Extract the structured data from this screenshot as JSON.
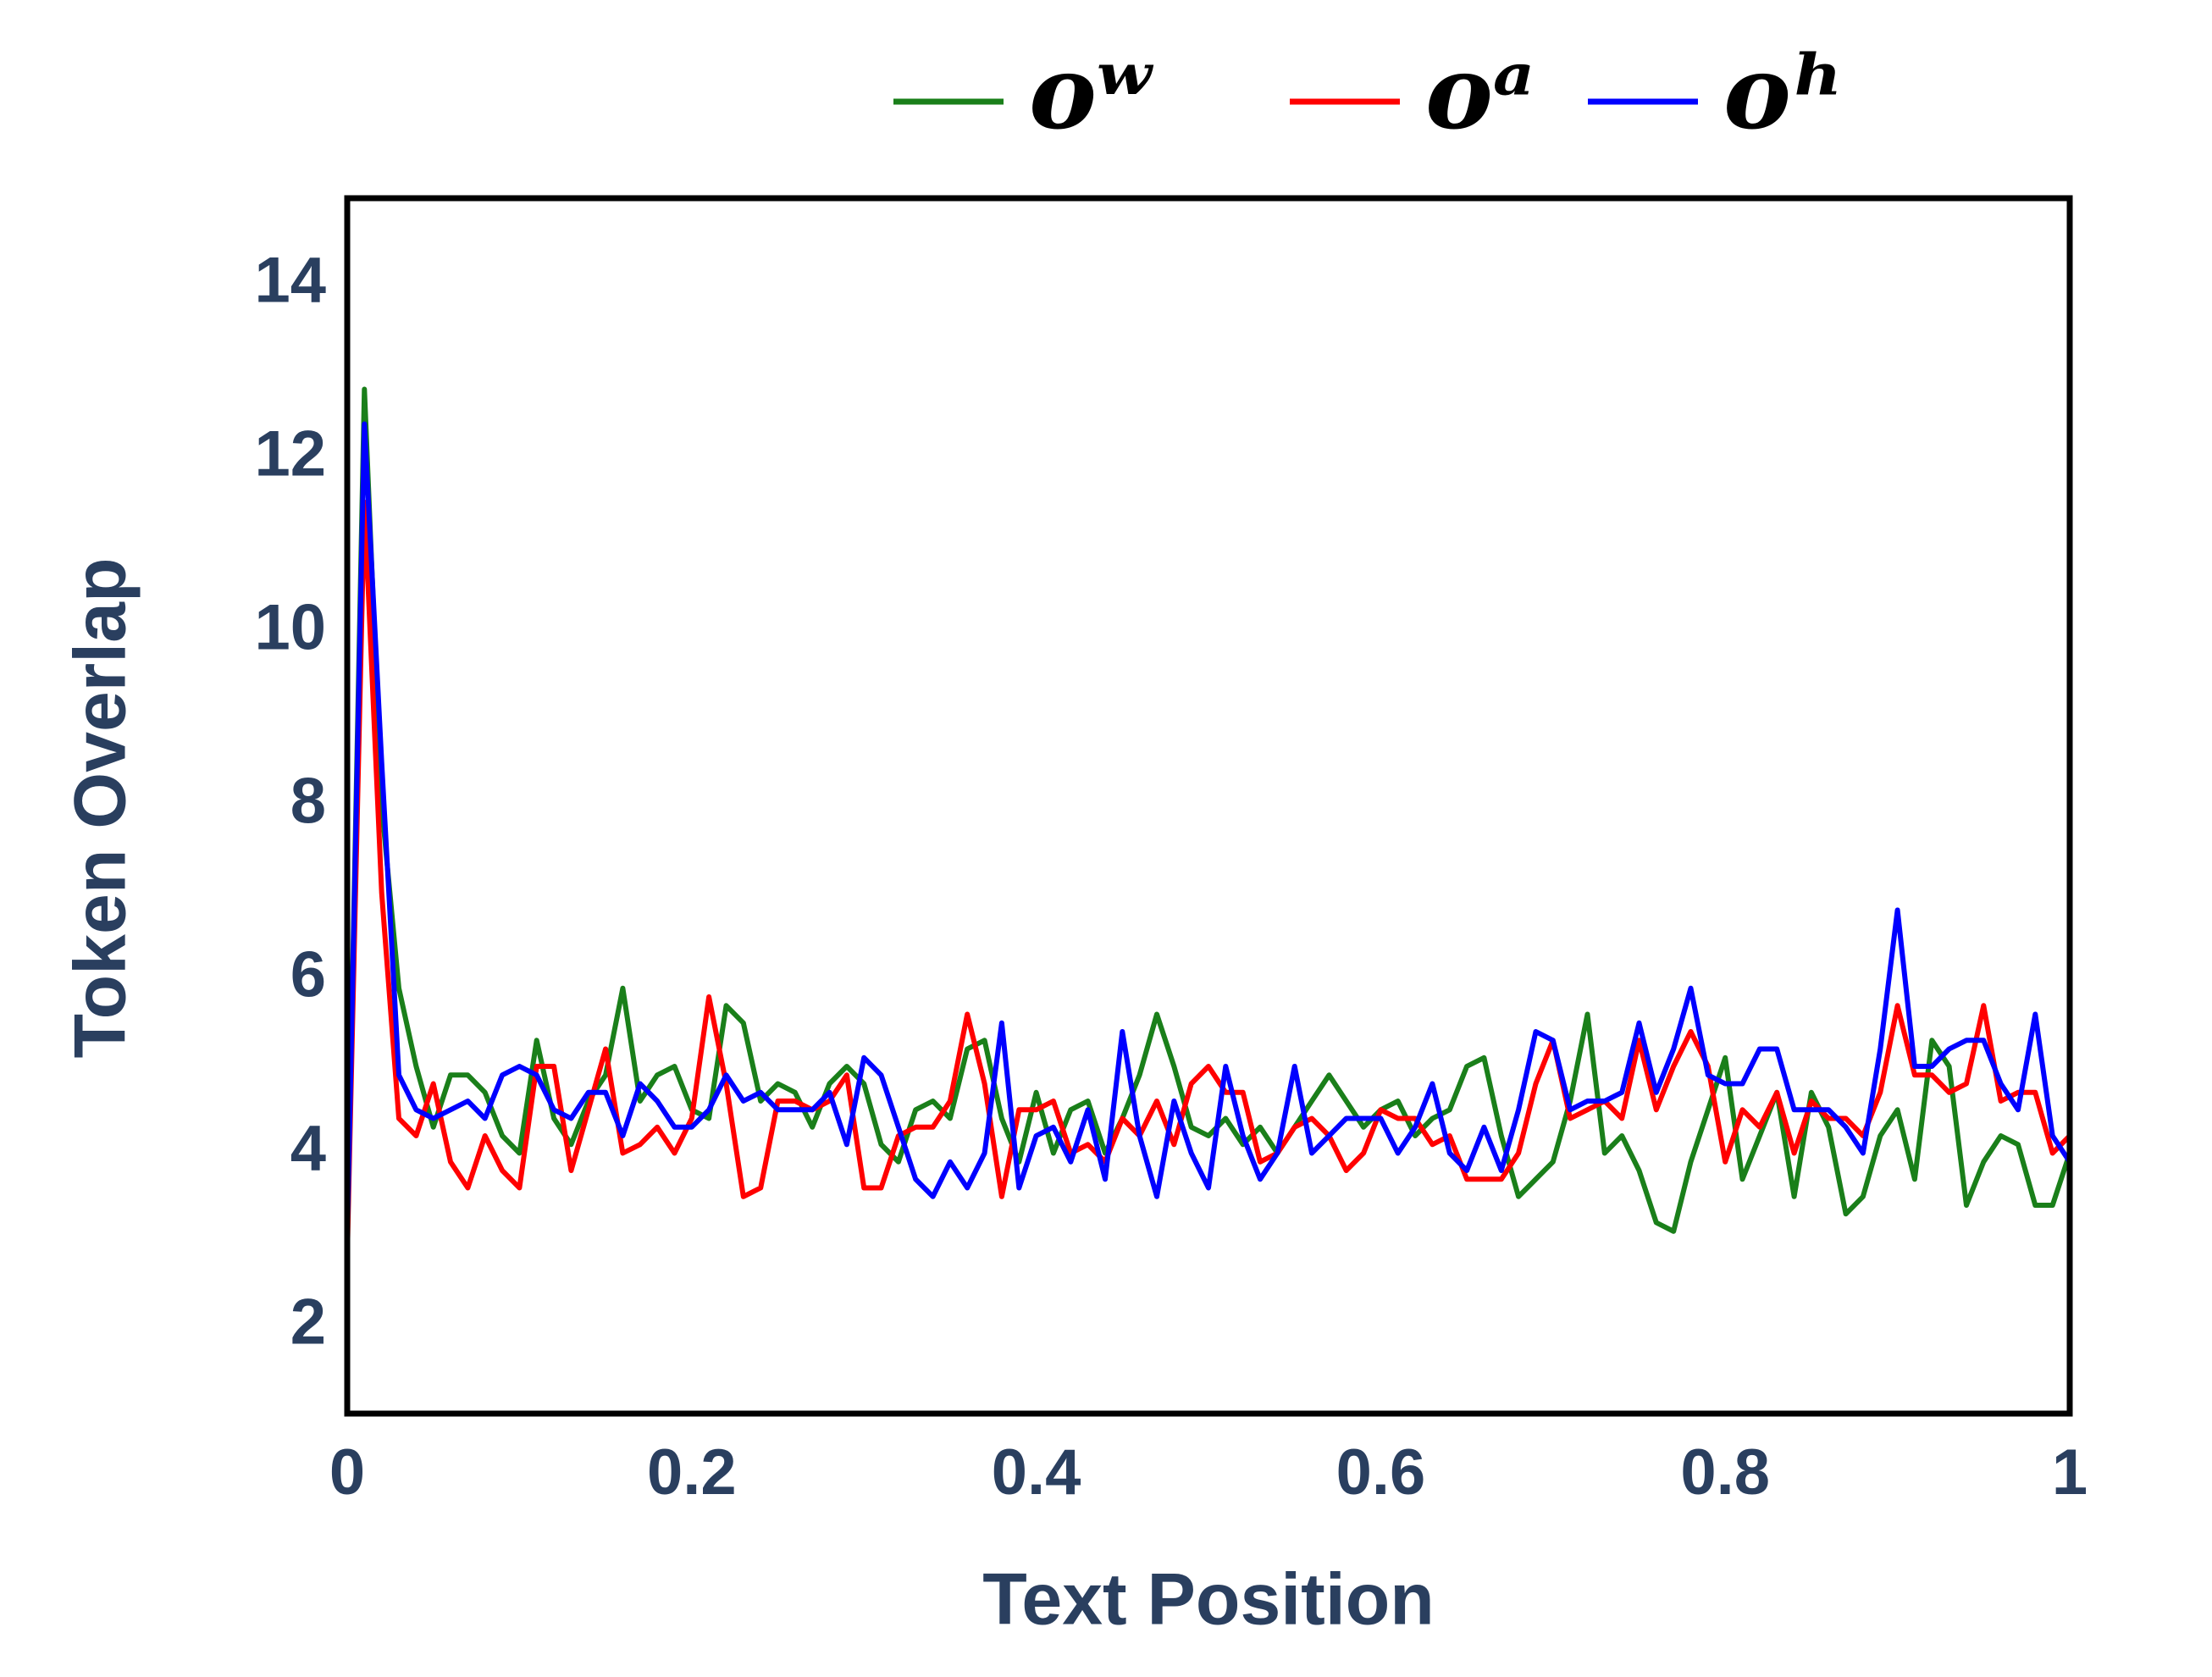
{
  "chart_data": {
    "type": "line",
    "xlabel": "Text Position",
    "ylabel": "Token Overlap",
    "xlim": [
      0,
      1
    ],
    "ylim": [
      1,
      15
    ],
    "xticks": [
      0,
      0.2,
      0.4,
      0.6,
      0.8,
      1
    ],
    "yticks": [
      2,
      4,
      6,
      8,
      10,
      12,
      14
    ],
    "grid": false,
    "legend": "top",
    "x": [
      0,
      0.01,
      0.02,
      0.03,
      0.04,
      0.05,
      0.06,
      0.07,
      0.08,
      0.09,
      0.1,
      0.11,
      0.12,
      0.13,
      0.14,
      0.15,
      0.16,
      0.17,
      0.18,
      0.19,
      0.2,
      0.21,
      0.22,
      0.23,
      0.24,
      0.25,
      0.26,
      0.27,
      0.28,
      0.29,
      0.3,
      0.31,
      0.32,
      0.33,
      0.34,
      0.35,
      0.36,
      0.37,
      0.38,
      0.39,
      0.4,
      0.41,
      0.42,
      0.43,
      0.44,
      0.45,
      0.46,
      0.47,
      0.48,
      0.49,
      0.5,
      0.51,
      0.52,
      0.53,
      0.54,
      0.55,
      0.56,
      0.57,
      0.58,
      0.59,
      0.6,
      0.61,
      0.62,
      0.63,
      0.64,
      0.65,
      0.66,
      0.67,
      0.68,
      0.69,
      0.7,
      0.71,
      0.72,
      0.73,
      0.74,
      0.75,
      0.76,
      0.77,
      0.78,
      0.79,
      0.8,
      0.81,
      0.82,
      0.83,
      0.84,
      0.85,
      0.86,
      0.87,
      0.88,
      0.89,
      0.9,
      0.91,
      0.92,
      0.93,
      0.94,
      0.95,
      0.96,
      0.97,
      0.98,
      0.99,
      1
    ],
    "series": [
      {
        "name": "oʷ",
        "color": "#1a7f1a",
        "values": [
          3,
          12.8,
          8,
          5.9,
          5,
          4.3,
          4.9,
          4.9,
          4.7,
          4.2,
          4,
          5.3,
          4.4,
          4.1,
          4.6,
          4.9,
          5.9,
          4.6,
          4.9,
          5,
          4.5,
          4.4,
          5.7,
          5.5,
          4.6,
          4.8,
          4.7,
          4.3,
          4.8,
          5,
          4.8,
          4.1,
          3.9,
          4.5,
          4.6,
          4.4,
          5.2,
          5.3,
          4.4,
          3.9,
          4.7,
          4,
          4.5,
          4.6,
          4,
          4.4,
          4.9,
          5.6,
          5,
          4.3,
          4.2,
          4.4,
          4.1,
          4.3,
          4,
          4.3,
          4.6,
          4.9,
          4.6,
          4.3,
          4.5,
          4.6,
          4.2,
          4.4,
          4.5,
          5,
          5.1,
          4.2,
          3.5,
          3.7,
          3.9,
          4.6,
          5.6,
          4,
          4.2,
          3.8,
          3.2,
          3.1,
          3.9,
          4.5,
          5.1,
          3.7,
          4.2,
          4.7,
          3.5,
          4.7,
          4.3,
          3.3,
          3.5,
          4.2,
          4.5,
          3.7,
          5.3,
          5,
          3.4,
          3.9,
          4.2,
          4.1,
          3.4,
          3.4,
          4
        ]
      },
      {
        "name": "oᵃ",
        "color": "#ff0000",
        "values": [
          2.8,
          11.5,
          7,
          4.4,
          4.2,
          4.8,
          3.9,
          3.6,
          4.2,
          3.8,
          3.6,
          5,
          5,
          3.8,
          4.5,
          5.2,
          4,
          4.1,
          4.3,
          4,
          4.4,
          5.8,
          4.8,
          3.5,
          3.6,
          4.6,
          4.6,
          4.5,
          4.6,
          4.9,
          3.6,
          3.6,
          4.2,
          4.3,
          4.3,
          4.6,
          5.6,
          4.8,
          3.5,
          4.5,
          4.5,
          4.6,
          4,
          4.1,
          3.9,
          4.4,
          4.2,
          4.6,
          4.1,
          4.8,
          5,
          4.7,
          4.7,
          3.9,
          4,
          4.3,
          4.4,
          4.2,
          3.8,
          4,
          4.5,
          4.4,
          4.4,
          4.1,
          4.2,
          3.7,
          3.7,
          3.7,
          4,
          4.8,
          5.3,
          4.4,
          4.5,
          4.6,
          4.4,
          5.3,
          4.5,
          5,
          5.4,
          5,
          3.9,
          4.5,
          4.3,
          4.7,
          4,
          4.6,
          4.4,
          4.4,
          4.2,
          4.7,
          5.7,
          4.9,
          4.9,
          4.7,
          4.8,
          5.7,
          4.6,
          4.7,
          4.7,
          4,
          4.2
        ]
      },
      {
        "name": "oʰ",
        "color": "#0000ff",
        "values": [
          3,
          12.4,
          8.5,
          4.9,
          4.5,
          4.4,
          4.5,
          4.6,
          4.4,
          4.9,
          5,
          4.9,
          4.5,
          4.4,
          4.7,
          4.7,
          4.2,
          4.8,
          4.6,
          4.3,
          4.3,
          4.5,
          4.9,
          4.6,
          4.7,
          4.5,
          4.5,
          4.5,
          4.7,
          4.1,
          5.1,
          4.9,
          4.3,
          3.7,
          3.5,
          3.9,
          3.6,
          4,
          5.5,
          3.6,
          4.2,
          4.3,
          3.9,
          4.5,
          3.7,
          5.4,
          4.2,
          3.5,
          4.6,
          4,
          3.6,
          5,
          4.2,
          3.7,
          4,
          5,
          4,
          4.2,
          4.4,
          4.4,
          4.4,
          4,
          4.3,
          4.8,
          4,
          3.8,
          4.3,
          3.8,
          4.5,
          5.4,
          5.3,
          4.5,
          4.6,
          4.6,
          4.7,
          5.5,
          4.7,
          5.2,
          5.9,
          4.9,
          4.8,
          4.8,
          5.2,
          5.2,
          4.5,
          4.5,
          4.5,
          4.3,
          4,
          5.2,
          6.8,
          5,
          5,
          5.2,
          5.3,
          5.3,
          4.8,
          4.5,
          5.6,
          4.2,
          3.9
        ]
      }
    ]
  }
}
